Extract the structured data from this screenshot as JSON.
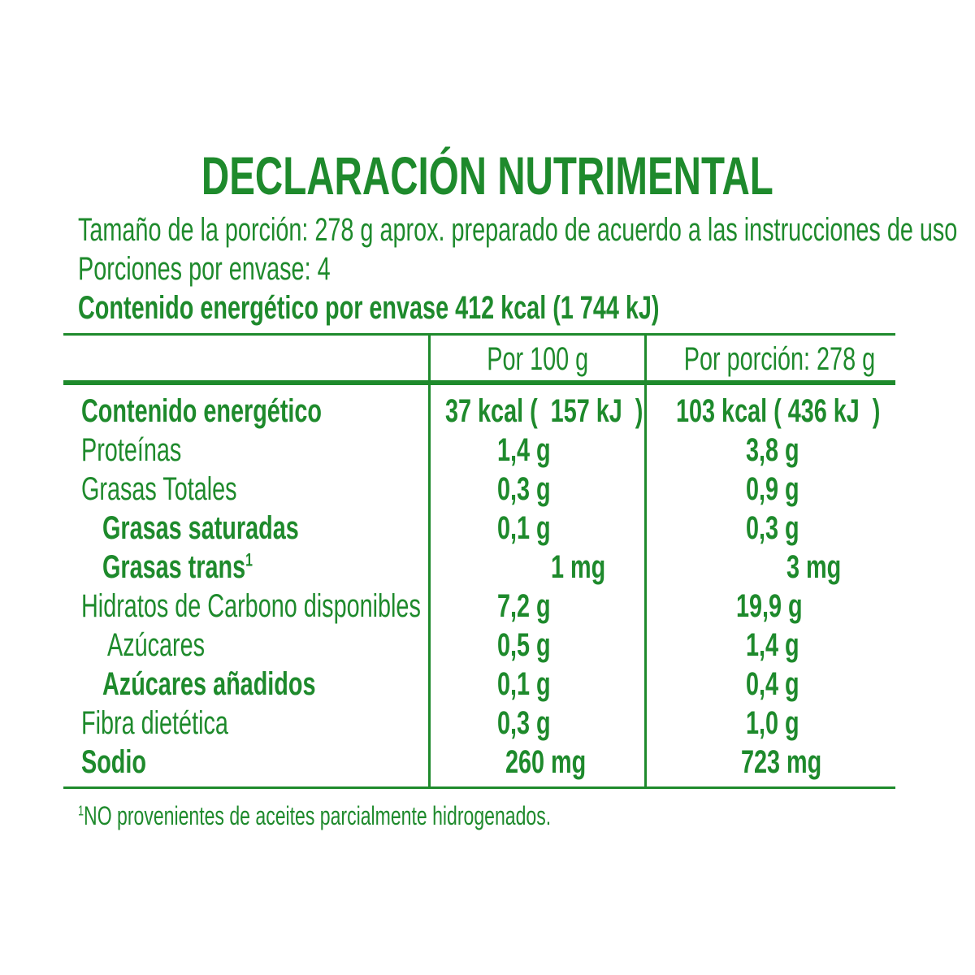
{
  "title": "DECLARACIÓN NUTRIMENTAL",
  "serving_size": "Tamaño de la porción: 278 g aprox. preparado de acuerdo a las instrucciones de uso",
  "servings_per_container": "Porciones por envase: 4",
  "energy_per_container": "Contenido energético por envase 412 kcal (1 744 kJ)",
  "columns": {
    "per_100g": "Por 100 g",
    "per_portion": "Por porción: 278 g"
  },
  "rows": [
    {
      "name": "Contenido energético",
      "per_100g": "37 kcal (  157 kJ  )",
      "per_portion": "103 kcal ( 436 kJ  )"
    },
    {
      "name": "Proteínas",
      "per_100g": "1,4 g",
      "per_portion": "3,8 g"
    },
    {
      "name": "Grasas Totales",
      "per_100g": "0,3 g",
      "per_portion": "0,9 g"
    },
    {
      "name": "Grasas saturadas",
      "per_100g": "0,1 g",
      "per_portion": "0,3 g"
    },
    {
      "name": "Grasas trans",
      "per_100g": "   1 mg",
      "per_portion": "   3 mg"
    },
    {
      "name": "Hidratos de Carbono disponibles",
      "per_100g": "7,2 g",
      "per_portion": "19,9 g"
    },
    {
      "name": "Azúcares",
      "per_100g": "0,5 g",
      "per_portion": "1,4 g"
    },
    {
      "name": "Azúcares añadidos",
      "per_100g": "0,1 g",
      "per_portion": "0,4 g"
    },
    {
      "name": "Fibra dietética",
      "per_100g": "0,3 g",
      "per_portion": "1,0 g"
    },
    {
      "name": "Sodio",
      "per_100g": "260 mg",
      "per_portion": "723 mg"
    }
  ],
  "trans_footnote_marker": "1",
  "footnote_marker": "1",
  "footnote": "NO provenientes de aceites parcialmente hidrogenados.",
  "colors": {
    "text": "#1e8a2c",
    "background": "#ffffff"
  }
}
